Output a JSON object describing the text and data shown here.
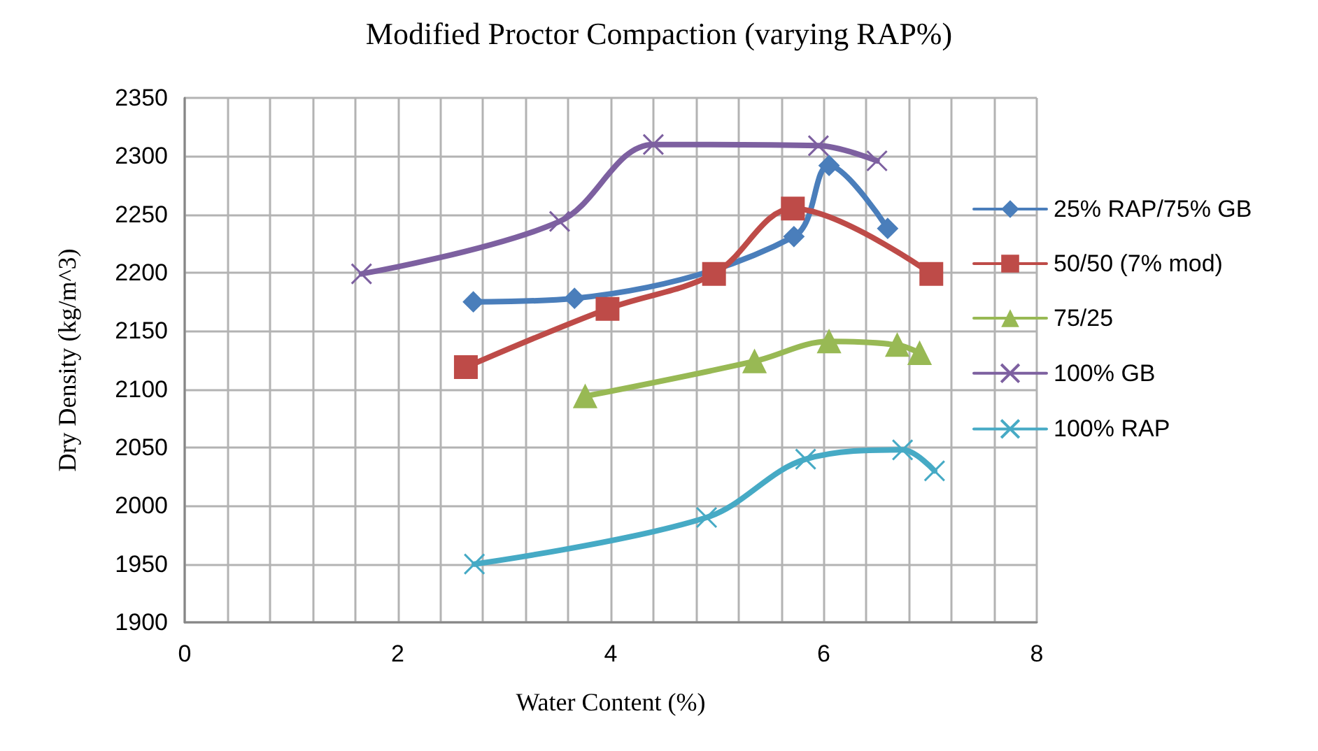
{
  "chart_data": {
    "type": "line",
    "title": "Modified Proctor Compaction (varying RAP%)",
    "xlabel": "Water Content (%)",
    "ylabel": "Dry Density (kg/m^3)",
    "xlim": [
      0,
      8
    ],
    "xticks": [
      0,
      {
        "value": 0.4,
        "label": null
      },
      {
        "value": 0.8,
        "label": null
      },
      {
        "value": 1.2,
        "label": null
      },
      {
        "value": 1.6,
        "label": null
      },
      2,
      {
        "value": 2.4,
        "label": null
      },
      {
        "value": 2.8,
        "label": null
      },
      {
        "value": 3.2,
        "label": null
      },
      {
        "value": 3.6,
        "label": null
      },
      4,
      {
        "value": 4.4,
        "label": null
      },
      {
        "value": 4.8,
        "label": null
      },
      {
        "value": 5.2,
        "label": null
      },
      {
        "value": 5.6,
        "label": null
      },
      6,
      {
        "value": 6.4,
        "label": null
      },
      {
        "value": 6.8,
        "label": null
      },
      {
        "value": 7.2,
        "label": null
      },
      {
        "value": 7.6,
        "label": null
      },
      8
    ],
    "ylim": [
      1900,
      2350
    ],
    "yticks": [
      1900,
      1950,
      2000,
      2050,
      2100,
      2150,
      2200,
      2250,
      2300,
      2350
    ],
    "grid": true,
    "legend": "right",
    "series": [
      {
        "name": "25% RAP/75% GB",
        "color": "#4a7ebb",
        "marker": "diamond",
        "x": [
          2.71,
          3.66,
          5.72,
          6.05,
          6.6
        ],
        "values": [
          2175,
          2178,
          2231,
          2292,
          2238
        ]
      },
      {
        "name": "50/50 (7% mod)",
        "color": "#be4b48",
        "marker": "square",
        "x": [
          2.64,
          3.97,
          4.97,
          5.71,
          7.01
        ],
        "values": [
          2119,
          2169,
          2199,
          2255,
          2199
        ]
      },
      {
        "name": "75/25",
        "color": "#98b954",
        "marker": "triangle",
        "x": [
          3.76,
          5.35,
          6.05,
          6.69,
          6.9
        ],
        "values": [
          2094,
          2124,
          2141,
          2138,
          2131
        ]
      },
      {
        "name": "100% GB",
        "color": "#7d60a0",
        "marker": "cross",
        "x": [
          1.66,
          3.52,
          4.4,
          5.95,
          6.5
        ],
        "values": [
          2199,
          2244,
          2310,
          2309,
          2296
        ]
      },
      {
        "name": "100% RAP",
        "color": "#46aac5",
        "marker": "cross",
        "x": [
          2.72,
          4.9,
          5.83,
          6.74,
          7.04
        ],
        "values": [
          1950,
          1990,
          2040,
          2048,
          2030
        ]
      }
    ]
  }
}
